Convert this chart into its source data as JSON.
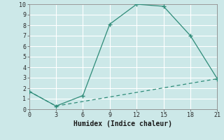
{
  "xlabel": "Humidex (Indice chaleur)",
  "line1_x": [
    0,
    3,
    6,
    9,
    12,
    15,
    18,
    21
  ],
  "line1_y": [
    1.7,
    0.3,
    1.3,
    8.1,
    10.0,
    9.8,
    7.0,
    2.9
  ],
  "line2_x": [
    0,
    3,
    21
  ],
  "line2_y": [
    1.7,
    0.3,
    2.9
  ],
  "line_color": "#2e8b78",
  "bg_color": "#cce8e8",
  "grid_color": "#ffffff",
  "grid_minor_color": "#ddeedd",
  "xlim": [
    0,
    21
  ],
  "ylim": [
    0,
    10
  ],
  "xticks": [
    0,
    3,
    6,
    9,
    12,
    15,
    18,
    21
  ],
  "yticks": [
    0,
    1,
    2,
    3,
    4,
    5,
    6,
    7,
    8,
    9,
    10
  ]
}
